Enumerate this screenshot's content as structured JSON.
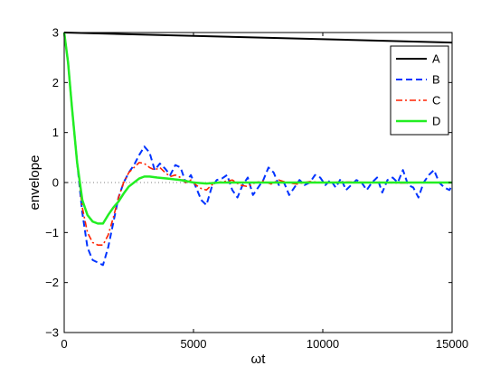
{
  "chart_data": {
    "type": "line",
    "title": "",
    "xlabel": "ωt",
    "ylabel": "envelope",
    "xlim": [
      0,
      15000
    ],
    "ylim": [
      -3,
      3
    ],
    "xticks": [
      0,
      5000,
      10000,
      15000
    ],
    "yticks": [
      -3,
      -2,
      -1,
      0,
      1,
      2,
      3
    ],
    "xtick_labels": [
      "0",
      "5000",
      "10000",
      "15000"
    ],
    "ytick_labels": [
      "−3",
      "−2",
      "−1",
      "0",
      "1",
      "2",
      "3"
    ],
    "grid": false,
    "zero_reference_line": true,
    "legend_position": "top-right",
    "series": [
      {
        "name": "A",
        "color": "#000000",
        "dash": "solid",
        "x": [
          0,
          15000
        ],
        "y": [
          3.0,
          2.8
        ]
      },
      {
        "name": "B",
        "color": "#0033ff",
        "dash": "dashed",
        "x": [
          0,
          150,
          300,
          500,
          700,
          900,
          1100,
          1300,
          1500,
          1700,
          1900,
          2100,
          2300,
          2500,
          2700,
          2900,
          3100,
          3300,
          3500,
          3700,
          3900,
          4100,
          4300,
          4500,
          4700,
          4900,
          5100,
          5300,
          5500,
          5700,
          5900,
          6100,
          6300,
          6500,
          6700,
          6900,
          7100,
          7300,
          7500,
          7700,
          7900,
          8100,
          8300,
          8500,
          8700,
          8900,
          9100,
          9300,
          9500,
          9700,
          9900,
          10100,
          10300,
          10500,
          10700,
          10900,
          11100,
          11300,
          11500,
          11700,
          11900,
          12100,
          12300,
          12500,
          12700,
          12900,
          13100,
          13300,
          13500,
          13700,
          13900,
          14100,
          14300,
          14500,
          14700,
          14900,
          15000
        ],
        "y": [
          3.0,
          2.4,
          1.5,
          0.4,
          -0.6,
          -1.3,
          -1.55,
          -1.6,
          -1.65,
          -1.3,
          -0.8,
          -0.3,
          0.0,
          0.2,
          0.35,
          0.55,
          0.72,
          0.6,
          0.25,
          0.38,
          0.28,
          0.15,
          0.35,
          0.3,
          0.0,
          0.15,
          -0.1,
          -0.35,
          -0.45,
          -0.1,
          0.05,
          0.08,
          0.15,
          -0.15,
          -0.3,
          -0.05,
          0.1,
          -0.25,
          -0.1,
          0.05,
          0.3,
          0.2,
          -0.05,
          0.0,
          -0.25,
          -0.1,
          0.05,
          -0.05,
          0.0,
          0.15,
          0.1,
          -0.05,
          0.05,
          -0.1,
          0.08,
          -0.15,
          -0.05,
          0.05,
          0.0,
          -0.15,
          0.0,
          0.1,
          -0.2,
          0.05,
          0.1,
          0.0,
          0.25,
          -0.05,
          -0.1,
          -0.3,
          0.0,
          0.15,
          0.25,
          0.0,
          -0.1,
          -0.15,
          -0.05
        ]
      },
      {
        "name": "C",
        "color": "#ff2200",
        "dash": "dashdot",
        "x": [
          0,
          150,
          300,
          500,
          700,
          900,
          1100,
          1300,
          1500,
          1700,
          1900,
          2100,
          2300,
          2500,
          2700,
          2900,
          3100,
          3300,
          3500,
          3700,
          3900,
          4100,
          4300,
          4500,
          4700,
          4900,
          5100,
          5300,
          5500,
          5700,
          5900,
          6200,
          6500,
          6800,
          7100,
          7400,
          7700,
          8000,
          8300,
          8600,
          9000,
          9500,
          10000,
          11000,
          12000,
          13000,
          14000,
          15000
        ],
        "y": [
          3.0,
          2.4,
          1.5,
          0.4,
          -0.5,
          -1.0,
          -1.2,
          -1.25,
          -1.25,
          -1.05,
          -0.7,
          -0.3,
          0.0,
          0.2,
          0.3,
          0.4,
          0.38,
          0.3,
          0.25,
          0.3,
          0.2,
          0.12,
          0.15,
          0.1,
          0.0,
          0.05,
          -0.05,
          -0.12,
          -0.15,
          -0.05,
          0.0,
          0.02,
          0.05,
          -0.05,
          -0.08,
          0.0,
          0.03,
          -0.03,
          0.05,
          0.0,
          -0.03,
          0.02,
          0.0,
          0.01,
          0.0,
          -0.01,
          0.0,
          0.0
        ]
      },
      {
        "name": "D",
        "color": "#22ee22",
        "dash": "solid",
        "x": [
          0,
          150,
          300,
          500,
          700,
          900,
          1100,
          1300,
          1500,
          1700,
          1900,
          2100,
          2300,
          2500,
          2700,
          2900,
          3100,
          3300,
          3600,
          4000,
          4500,
          5000,
          5500,
          6000,
          7000,
          8000,
          9000,
          10000,
          12000,
          15000
        ],
        "y": [
          3.0,
          2.4,
          1.5,
          0.4,
          -0.35,
          -0.65,
          -0.78,
          -0.82,
          -0.82,
          -0.65,
          -0.5,
          -0.38,
          -0.22,
          -0.08,
          0.0,
          0.08,
          0.12,
          0.12,
          0.1,
          0.08,
          0.05,
          0.0,
          -0.02,
          0.0,
          0.0,
          0.0,
          0.0,
          0.0,
          0.0,
          0.0
        ]
      }
    ]
  }
}
